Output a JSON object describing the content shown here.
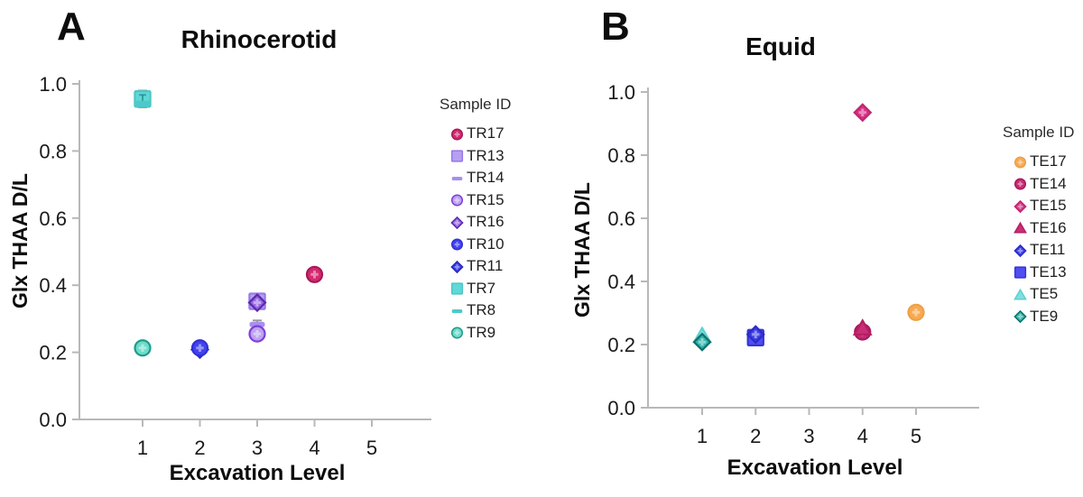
{
  "chart_data": [
    {
      "type": "scatter",
      "panel_letter": "A",
      "title": "Rhinocerotid",
      "xlabel": "Excavation Level",
      "ylabel": "Glx THAA D/L",
      "legend_title": "Sample ID",
      "legend_position": "right",
      "grid": false,
      "xlim": [
        0,
        6
      ],
      "ylim": [
        0.0,
        1.0
      ],
      "x_ticks": [
        "1",
        "2",
        "3",
        "4",
        "5"
      ],
      "y_ticks": [
        "1.0",
        "0.8",
        "0.6",
        "0.4",
        "0.2",
        "0.0"
      ],
      "series": [
        {
          "id": "TR17",
          "marker": "circle",
          "fill": "#d32a6f",
          "edge": "#a81758",
          "z": 10,
          "points": [
            {
              "x": 4,
              "y": 0.432
            }
          ]
        },
        {
          "id": "TR13",
          "marker": "square",
          "fill": "#b6a0f2",
          "edge": "#9678e8",
          "z": 5,
          "points": [
            {
              "x": 3,
              "y": 0.352
            }
          ]
        },
        {
          "id": "TR14",
          "marker": "dash",
          "fill": "#a88ef0",
          "edge": "#a88ef0",
          "z": 7,
          "points": [
            {
              "x": 3,
              "y": 0.283,
              "err": 0.012
            }
          ]
        },
        {
          "id": "TR15",
          "marker": "circle",
          "fill": "#bda2f4",
          "edge": "#7e3fd6",
          "z": 8,
          "points": [
            {
              "x": 3,
              "y": 0.255
            }
          ]
        },
        {
          "id": "TR16",
          "marker": "diamond",
          "fill": "#9568e6",
          "edge": "#5c2aaa",
          "z": 6,
          "points": [
            {
              "x": 3,
              "y": 0.348
            }
          ]
        },
        {
          "id": "TR10",
          "marker": "circle",
          "fill": "#4242f0",
          "edge": "#3030d4",
          "z": 4,
          "points": [
            {
              "x": 2,
              "y": 0.213
            }
          ]
        },
        {
          "id": "TR11",
          "marker": "diamond",
          "fill": "#3b3be6",
          "edge": "#2929be",
          "z": 3,
          "points": [
            {
              "x": 2,
              "y": 0.208
            }
          ]
        },
        {
          "id": "TR7",
          "marker": "square",
          "fill": "#60d8d8",
          "edge": "#4cc6c6",
          "z": 1,
          "points": [
            {
              "x": 1,
              "y": 0.955,
              "err": 0.025,
              "inner_err": 0.012
            }
          ]
        },
        {
          "id": "TR8",
          "marker": "dash",
          "fill": "#4dc9c9",
          "edge": "#4dc9c9",
          "z": 2,
          "points": [
            {
              "x": 1,
              "y": 0.942
            }
          ]
        },
        {
          "id": "TR9",
          "marker": "circle",
          "fill": "#6edcca",
          "edge": "#209a8c",
          "z": 9,
          "points": [
            {
              "x": 1,
              "y": 0.213
            }
          ]
        }
      ]
    },
    {
      "type": "scatter",
      "panel_letter": "B",
      "title": "Equid",
      "xlabel": "Excavation Level",
      "ylabel": "Glx THAA D/L",
      "legend_title": "Sample ID",
      "legend_position": "right",
      "grid": false,
      "xlim": [
        0,
        6
      ],
      "ylim": [
        0.0,
        1.0
      ],
      "x_ticks": [
        "1",
        "2",
        "3",
        "4",
        "5"
      ],
      "y_ticks": [
        "1.0",
        "0.8",
        "0.6",
        "0.4",
        "0.2",
        "0.0"
      ],
      "series": [
        {
          "id": "TE17",
          "marker": "circle",
          "fill": "#f8aa52",
          "edge": "#eea045",
          "z": 8,
          "points": [
            {
              "x": 5,
              "y": 0.302
            }
          ]
        },
        {
          "id": "TE14",
          "marker": "circle",
          "fill": "#c72a72",
          "edge": "#a81a5e",
          "z": 5,
          "points": [
            {
              "x": 4,
              "y": 0.24
            }
          ]
        },
        {
          "id": "TE15",
          "marker": "diamond",
          "fill": "#d43486",
          "edge": "#c22670",
          "z": 7,
          "points": [
            {
              "x": 4,
              "y": 0.935
            }
          ]
        },
        {
          "id": "TE16",
          "marker": "triangle",
          "fill": "#ca2e74",
          "edge": "#b21f62",
          "z": 6,
          "points": [
            {
              "x": 4,
              "y": 0.252
            }
          ]
        },
        {
          "id": "TE11",
          "marker": "diamond",
          "fill": "#3e3ee8",
          "edge": "#2b2bc6",
          "z": 4,
          "points": [
            {
              "x": 2,
              "y": 0.232
            }
          ]
        },
        {
          "id": "TE13",
          "marker": "square",
          "fill": "#4e4ef2",
          "edge": "#3636d8",
          "z": 3,
          "points": [
            {
              "x": 2,
              "y": 0.222
            }
          ]
        },
        {
          "id": "TE5",
          "marker": "triangle",
          "fill": "#7de0e0",
          "edge": "#5fcfcf",
          "z": 1,
          "points": [
            {
              "x": 1,
              "y": 0.228
            }
          ]
        },
        {
          "id": "TE9",
          "marker": "diamond",
          "fill": "#30b4ac",
          "edge": "#0f7068",
          "z": 2,
          "points": [
            {
              "x": 1,
              "y": 0.208
            }
          ]
        }
      ]
    }
  ],
  "style_colors": {
    "axis": "#b8b8b8",
    "error_bar": "#9b9b9b",
    "tick_label": "#1a1a1a"
  }
}
